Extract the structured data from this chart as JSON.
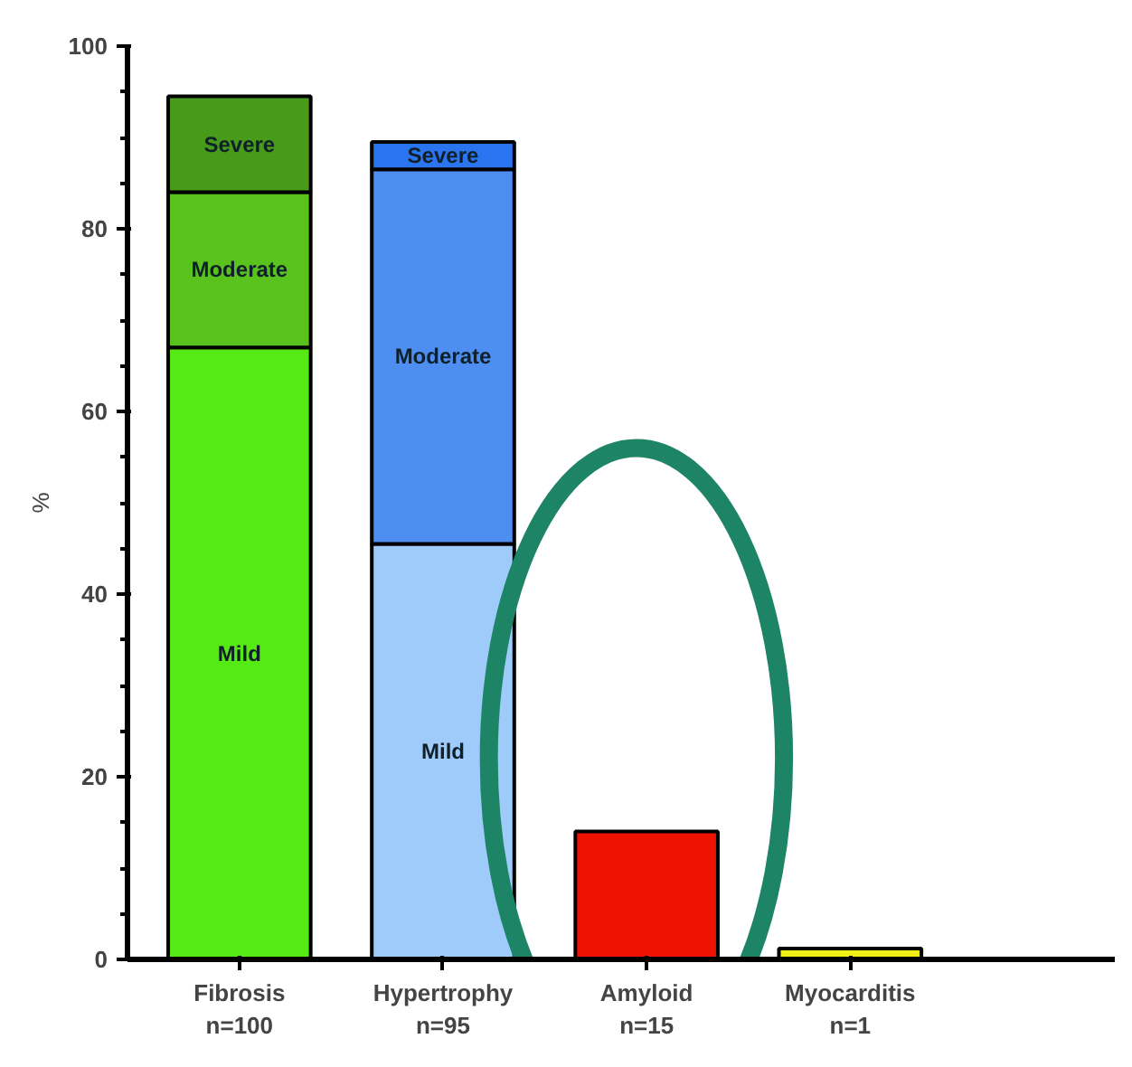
{
  "chart_data": {
    "type": "bar",
    "stacked": true,
    "ylabel": "%",
    "categories": [
      "Fibrosis\nn=100",
      "Hypertrophy\nn=95",
      "Amyloid\nn=15",
      "Myocarditis\nn=1"
    ],
    "series": [
      {
        "name": "Mild",
        "colors": [
          "#55ea14",
          "#9ecbfa",
          "#f01200",
          "#f0f014"
        ],
        "values": [
          67,
          45.5,
          14,
          1.2
        ]
      },
      {
        "name": "Moderate",
        "colors": [
          "#59c21c",
          "#4d8ef0",
          null,
          null
        ],
        "values": [
          17,
          41,
          null,
          null
        ]
      },
      {
        "name": "Severe",
        "colors": [
          "#489a1a",
          "#2b74f0",
          null,
          null
        ],
        "values": [
          10.5,
          3,
          null,
          null
        ]
      }
    ],
    "ylim": [
      0,
      100
    ],
    "yticks": [
      0,
      20,
      40,
      60,
      80,
      100
    ],
    "grid": false
  }
}
